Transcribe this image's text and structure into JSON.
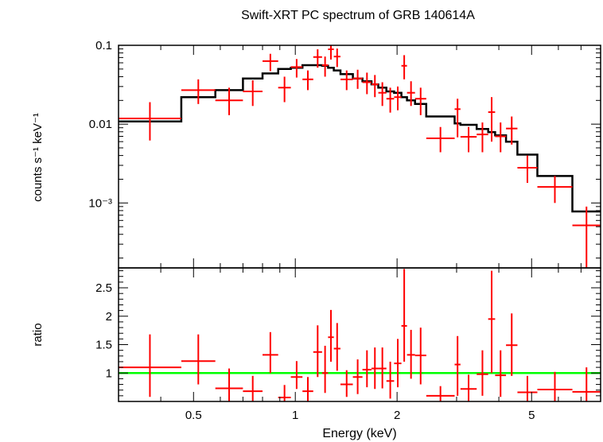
{
  "chart_data": [
    {
      "type": "scatter",
      "title": "Swift-XRT PC spectrum of GRB 140614A",
      "ylabel": "counts s⁻¹ keV⁻¹",
      "xlabel": "",
      "x_scale": "log",
      "y_scale": "log",
      "xlim": [
        0.3,
        8.0
      ],
      "ylim": [
        0.00015,
        0.1
      ],
      "y_ticks": [
        {
          "value": 0.1,
          "label": "0.1"
        },
        {
          "value": 0.01,
          "label": "0.01"
        },
        {
          "value": 0.001,
          "label": "10⁻³"
        }
      ],
      "series": [
        {
          "color": "#ff0000",
          "style": "crosses",
          "points": [
            {
              "xlo": 0.3,
              "xhi": 0.46,
              "y": 0.0118,
              "ylo": 0.0062,
              "yhi": 0.019
            },
            {
              "xlo": 0.46,
              "xhi": 0.58,
              "y": 0.027,
              "ylo": 0.018,
              "yhi": 0.037
            },
            {
              "xlo": 0.58,
              "xhi": 0.7,
              "y": 0.02,
              "ylo": 0.013,
              "yhi": 0.029
            },
            {
              "xlo": 0.7,
              "xhi": 0.8,
              "y": 0.026,
              "ylo": 0.017,
              "yhi": 0.036
            },
            {
              "xlo": 0.8,
              "xhi": 0.89,
              "y": 0.063,
              "ylo": 0.047,
              "yhi": 0.078
            },
            {
              "xlo": 0.89,
              "xhi": 0.97,
              "y": 0.029,
              "ylo": 0.019,
              "yhi": 0.04
            },
            {
              "xlo": 0.97,
              "xhi": 1.05,
              "y": 0.053,
              "ylo": 0.039,
              "yhi": 0.067
            },
            {
              "xlo": 1.05,
              "xhi": 1.13,
              "y": 0.037,
              "ylo": 0.027,
              "yhi": 0.048
            },
            {
              "xlo": 1.13,
              "xhi": 1.2,
              "y": 0.071,
              "ylo": 0.052,
              "yhi": 0.089
            },
            {
              "xlo": 1.2,
              "xhi": 1.25,
              "y": 0.056,
              "ylo": 0.04,
              "yhi": 0.072
            },
            {
              "xlo": 1.25,
              "xhi": 1.3,
              "y": 0.089,
              "ylo": 0.066,
              "yhi": 0.1
            },
            {
              "xlo": 1.3,
              "xhi": 1.36,
              "y": 0.072,
              "ylo": 0.053,
              "yhi": 0.091
            },
            {
              "xlo": 1.36,
              "xhi": 1.48,
              "y": 0.037,
              "ylo": 0.027,
              "yhi": 0.048
            },
            {
              "xlo": 1.48,
              "xhi": 1.58,
              "y": 0.038,
              "ylo": 0.028,
              "yhi": 0.049
            },
            {
              "xlo": 1.58,
              "xhi": 1.68,
              "y": 0.034,
              "ylo": 0.024,
              "yhi": 0.045
            },
            {
              "xlo": 1.68,
              "xhi": 1.76,
              "y": 0.032,
              "ylo": 0.022,
              "yhi": 0.042
            },
            {
              "xlo": 1.76,
              "xhi": 1.86,
              "y": 0.025,
              "ylo": 0.017,
              "yhi": 0.034
            },
            {
              "xlo": 1.86,
              "xhi": 1.96,
              "y": 0.021,
              "ylo": 0.014,
              "yhi": 0.029
            },
            {
              "xlo": 1.96,
              "xhi": 2.06,
              "y": 0.022,
              "ylo": 0.015,
              "yhi": 0.03
            },
            {
              "xlo": 2.06,
              "xhi": 2.14,
              "y": 0.055,
              "ylo": 0.037,
              "yhi": 0.075
            },
            {
              "xlo": 2.14,
              "xhi": 2.26,
              "y": 0.025,
              "ylo": 0.017,
              "yhi": 0.035
            },
            {
              "xlo": 2.26,
              "xhi": 2.44,
              "y": 0.021,
              "ylo": 0.013,
              "yhi": 0.029
            },
            {
              "xlo": 2.44,
              "xhi": 2.96,
              "y": 0.0066,
              "ylo": 0.0044,
              "yhi": 0.0092
            },
            {
              "xlo": 2.96,
              "xhi": 3.08,
              "y": 0.0155,
              "ylo": 0.0068,
              "yhi": 0.021
            },
            {
              "xlo": 3.08,
              "xhi": 3.44,
              "y": 0.0069,
              "ylo": 0.0044,
              "yhi": 0.0092
            },
            {
              "xlo": 3.44,
              "xhi": 3.72,
              "y": 0.0074,
              "ylo": 0.0044,
              "yhi": 0.0105
            },
            {
              "xlo": 3.72,
              "xhi": 3.9,
              "y": 0.0142,
              "ylo": 0.006,
              "yhi": 0.022
            },
            {
              "xlo": 3.9,
              "xhi": 4.2,
              "y": 0.007,
              "ylo": 0.0044,
              "yhi": 0.0105
            },
            {
              "xlo": 4.2,
              "xhi": 4.54,
              "y": 0.0088,
              "ylo": 0.0055,
              "yhi": 0.0125
            },
            {
              "xlo": 4.54,
              "xhi": 5.2,
              "y": 0.0028,
              "ylo": 0.0018,
              "yhi": 0.004
            },
            {
              "xlo": 5.2,
              "xhi": 6.6,
              "y": 0.0016,
              "ylo": 0.001,
              "yhi": 0.0022
            },
            {
              "xlo": 6.6,
              "xhi": 8.0,
              "y": 0.00052,
              "ylo": 0.00015,
              "yhi": 0.0009
            }
          ]
        },
        {
          "color": "#000000",
          "style": "step",
          "edges": [
            0.3,
            0.46,
            0.58,
            0.7,
            0.8,
            0.89,
            0.97,
            1.05,
            1.13,
            1.2,
            1.25,
            1.3,
            1.36,
            1.48,
            1.58,
            1.68,
            1.76,
            1.86,
            1.96,
            2.06,
            2.14,
            2.26,
            2.44,
            2.96,
            3.08,
            3.44,
            3.72,
            3.9,
            4.2,
            4.54,
            5.2,
            6.6,
            8.0
          ],
          "values": [
            0.0108,
            0.022,
            0.027,
            0.038,
            0.044,
            0.05,
            0.052,
            0.056,
            0.056,
            0.055,
            0.052,
            0.048,
            0.043,
            0.038,
            0.035,
            0.032,
            0.029,
            0.026,
            0.025,
            0.022,
            0.02,
            0.018,
            0.0125,
            0.0102,
            0.0098,
            0.0087,
            0.0079,
            0.0072,
            0.006,
            0.0041,
            0.0022,
            0.00078
          ]
        }
      ]
    },
    {
      "type": "scatter",
      "xlabel": "Energy (keV)",
      "ylabel": "ratio",
      "x_scale": "log",
      "xlim": [
        0.3,
        8.0
      ],
      "ylim": [
        0.5,
        2.85
      ],
      "x_ticks": [
        {
          "value": 0.5,
          "label": "0.5"
        },
        {
          "value": 1,
          "label": "1"
        },
        {
          "value": 2,
          "label": "2"
        },
        {
          "value": 5,
          "label": "5"
        }
      ],
      "y_ticks": [
        {
          "value": 1,
          "label": "1"
        },
        {
          "value": 1.5,
          "label": "1.5"
        },
        {
          "value": 2,
          "label": "2"
        },
        {
          "value": 2.5,
          "label": "2.5"
        }
      ],
      "reference_line": {
        "y": 1.0,
        "color": "#00ff00"
      },
      "series": [
        {
          "color": "#ff0000",
          "style": "crosses",
          "points": [
            {
              "xlo": 0.3,
              "xhi": 0.46,
              "y": 1.1,
              "ylo": 0.58,
              "yhi": 1.68
            },
            {
              "xlo": 0.46,
              "xhi": 0.58,
              "y": 1.21,
              "ylo": 0.8,
              "yhi": 1.68
            },
            {
              "xlo": 0.58,
              "xhi": 0.7,
              "y": 0.73,
              "ylo": 0.5,
              "yhi": 1.08
            },
            {
              "xlo": 0.7,
              "xhi": 0.8,
              "y": 0.68,
              "ylo": 0.5,
              "yhi": 0.95
            },
            {
              "xlo": 0.8,
              "xhi": 0.89,
              "y": 1.32,
              "ylo": 1.0,
              "yhi": 1.72
            },
            {
              "xlo": 0.89,
              "xhi": 0.97,
              "y": 0.57,
              "ylo": 0.5,
              "yhi": 0.79
            },
            {
              "xlo": 0.97,
              "xhi": 1.05,
              "y": 0.93,
              "ylo": 0.72,
              "yhi": 1.21
            },
            {
              "xlo": 1.05,
              "xhi": 1.13,
              "y": 0.68,
              "ylo": 0.5,
              "yhi": 0.93
            },
            {
              "xlo": 1.13,
              "xhi": 1.2,
              "y": 1.37,
              "ylo": 0.93,
              "yhi": 1.84
            },
            {
              "xlo": 1.2,
              "xhi": 1.25,
              "y": 1.0,
              "ylo": 0.65,
              "yhi": 1.48
            },
            {
              "xlo": 1.25,
              "xhi": 1.3,
              "y": 1.63,
              "ylo": 1.2,
              "yhi": 2.11
            },
            {
              "xlo": 1.3,
              "xhi": 1.36,
              "y": 1.43,
              "ylo": 1.04,
              "yhi": 1.88
            },
            {
              "xlo": 1.36,
              "xhi": 1.48,
              "y": 0.8,
              "ylo": 0.58,
              "yhi": 1.05
            },
            {
              "xlo": 1.48,
              "xhi": 1.58,
              "y": 0.93,
              "ylo": 0.63,
              "yhi": 1.24
            },
            {
              "xlo": 1.58,
              "xhi": 1.68,
              "y": 1.06,
              "ylo": 0.75,
              "yhi": 1.4
            },
            {
              "xlo": 1.68,
              "xhi": 1.76,
              "y": 1.08,
              "ylo": 0.72,
              "yhi": 1.45
            },
            {
              "xlo": 1.76,
              "xhi": 1.86,
              "y": 1.08,
              "ylo": 0.73,
              "yhi": 1.45
            },
            {
              "xlo": 1.86,
              "xhi": 1.96,
              "y": 0.86,
              "ylo": 0.55,
              "yhi": 1.2
            },
            {
              "xlo": 1.96,
              "xhi": 2.06,
              "y": 1.17,
              "ylo": 0.75,
              "yhi": 1.6
            },
            {
              "xlo": 2.06,
              "xhi": 2.14,
              "y": 1.83,
              "ylo": 1.2,
              "yhi": 2.83
            },
            {
              "xlo": 2.14,
              "xhi": 2.26,
              "y": 1.32,
              "ylo": 0.9,
              "yhi": 1.76
            },
            {
              "xlo": 2.26,
              "xhi": 2.44,
              "y": 1.31,
              "ylo": 0.8,
              "yhi": 1.8
            },
            {
              "xlo": 2.44,
              "xhi": 2.96,
              "y": 0.6,
              "ylo": 0.5,
              "yhi": 0.77
            },
            {
              "xlo": 2.96,
              "xhi": 3.08,
              "y": 1.15,
              "ylo": 0.6,
              "yhi": 1.65
            },
            {
              "xlo": 3.08,
              "xhi": 3.44,
              "y": 0.72,
              "ylo": 0.5,
              "yhi": 0.97
            },
            {
              "xlo": 3.44,
              "xhi": 3.72,
              "y": 0.98,
              "ylo": 0.6,
              "yhi": 1.4
            },
            {
              "xlo": 3.72,
              "xhi": 3.9,
              "y": 1.95,
              "ylo": 1.0,
              "yhi": 2.8
            },
            {
              "xlo": 3.9,
              "xhi": 4.2,
              "y": 0.96,
              "ylo": 0.58,
              "yhi": 1.4
            },
            {
              "xlo": 4.2,
              "xhi": 4.54,
              "y": 1.49,
              "ylo": 0.95,
              "yhi": 2.05
            },
            {
              "xlo": 4.54,
              "xhi": 5.2,
              "y": 0.66,
              "ylo": 0.5,
              "yhi": 0.95
            },
            {
              "xlo": 5.2,
              "xhi": 6.6,
              "y": 0.71,
              "ylo": 0.5,
              "yhi": 1.02
            },
            {
              "xlo": 6.6,
              "xhi": 8.0,
              "y": 0.67,
              "ylo": 0.5,
              "yhi": 1.1
            }
          ]
        }
      ]
    }
  ]
}
